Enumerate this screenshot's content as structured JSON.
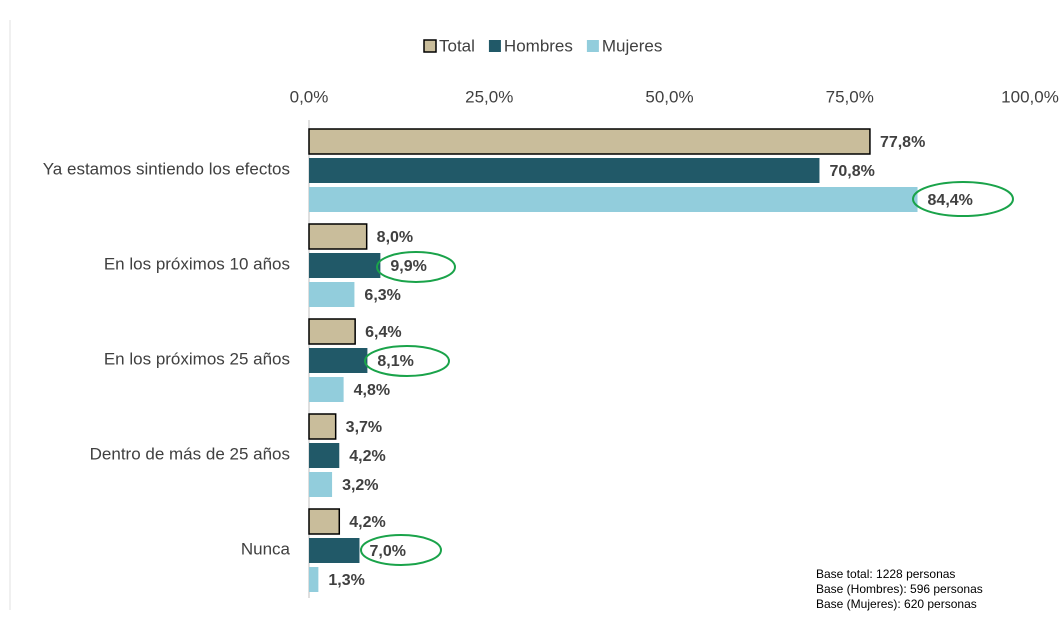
{
  "chart_data": {
    "type": "barh",
    "categories": [
      "Ya estamos sintiendo los efectos",
      "En los próximos 10 años",
      "En los próximos 25 años",
      "Dentro de más de 25 años",
      "Nunca"
    ],
    "series": [
      {
        "name": "Total",
        "color": "#c9bd9b",
        "values": [
          77.8,
          8.0,
          6.4,
          3.7,
          4.2
        ],
        "value_labels": [
          "77,8%",
          "8,0%",
          "6,4%",
          "3,7%",
          "4,2%"
        ]
      },
      {
        "name": "Hombres",
        "color": "#215968",
        "values": [
          70.8,
          9.9,
          8.1,
          4.2,
          7.0
        ],
        "value_labels": [
          "70,8%",
          "9,9%",
          "8,1%",
          "4,2%",
          "7,0%"
        ]
      },
      {
        "name": "Mujeres",
        "color": "#92cddc",
        "values": [
          84.4,
          6.3,
          4.8,
          3.2,
          1.3
        ],
        "value_labels": [
          "84,4%",
          "6,3%",
          "4,8%",
          "3,2%",
          "1,3%"
        ]
      }
    ],
    "xlim": [
      0,
      100
    ],
    "xticks": [
      {
        "value": 0,
        "label": "0,0%"
      },
      {
        "value": 25,
        "label": "25,0%"
      },
      {
        "value": 50,
        "label": "50,0%"
      },
      {
        "value": 75,
        "label": "75,0%"
      },
      {
        "value": 100,
        "label": "100,0%"
      }
    ],
    "legend": "top",
    "notes": [
      "Base total: 1228 personas",
      "Base (Hombres): 596 personas",
      "Base (Mujeres): 620 personas"
    ]
  }
}
